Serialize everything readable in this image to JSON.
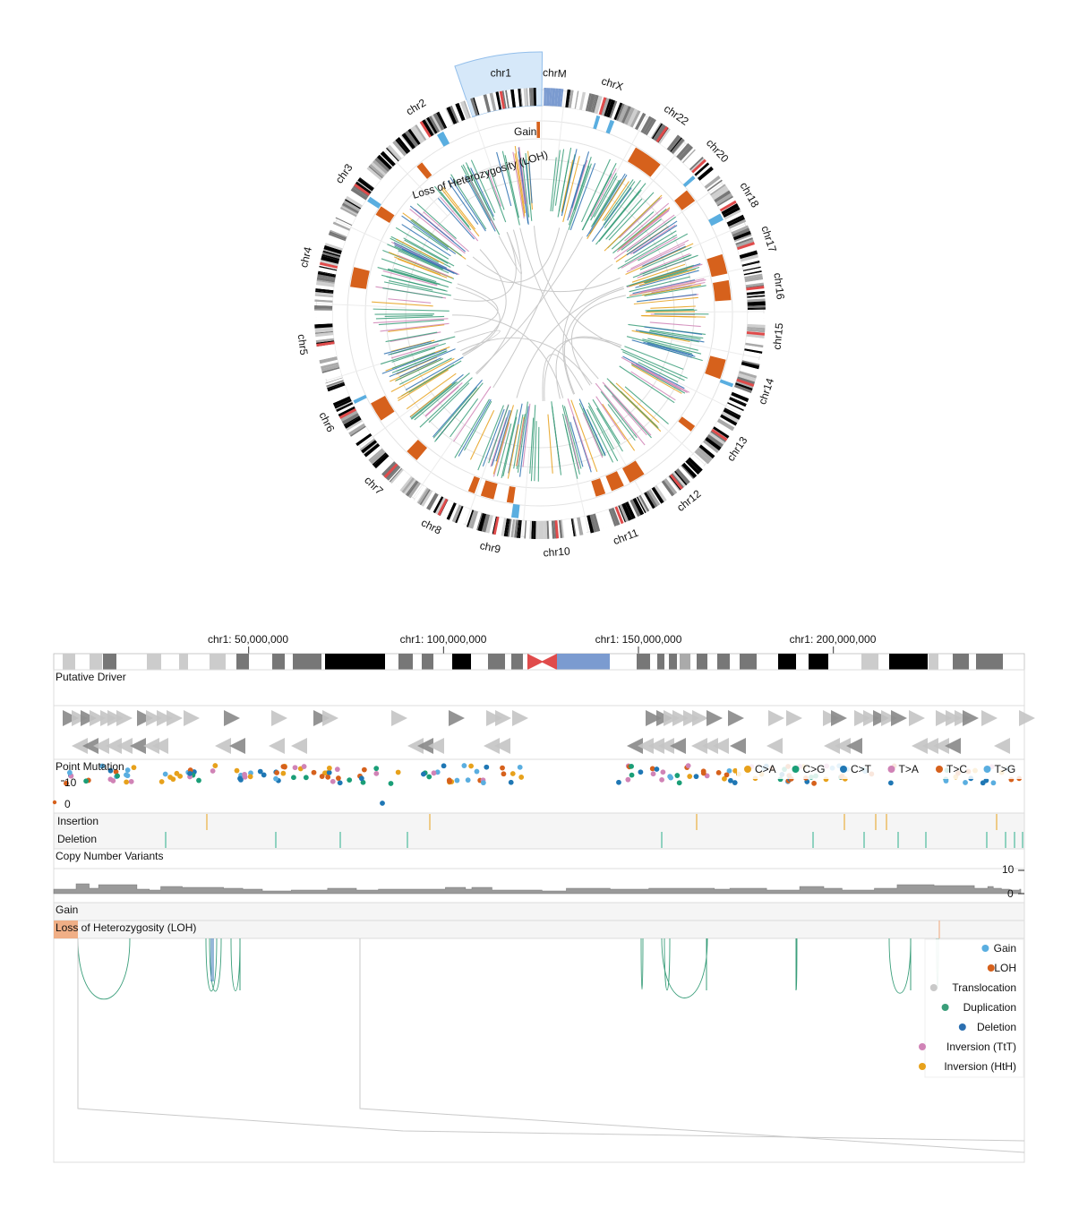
{
  "colors": {
    "gain": "#5aaee0",
    "loh": "#d6611c",
    "translocation": "#c9c9c9",
    "duplication": "#3a9e7a",
    "deletion": "#2b6fb0",
    "inversion_tt": "#d083b6",
    "inversion_hth": "#e7a11b",
    "selection": "#cfe4f8",
    "acen": "#e04b4b",
    "gvar": "#7b9bd0"
  },
  "circos": {
    "chromosomes": [
      "chr1",
      "chr2",
      "chr3",
      "chr4",
      "chr5",
      "chr6",
      "chr7",
      "chr8",
      "chr9",
      "chr10",
      "chr11",
      "chr12",
      "chr13",
      "chr14",
      "chr15",
      "chr16",
      "chr17",
      "chr18",
      "chr20",
      "chr22",
      "chrX",
      "chrM"
    ],
    "selected": "chr1",
    "gain_track_label": "Gain",
    "loh_track_label": "Loss of Heterozygosity (LOH)"
  },
  "linear": {
    "axis_ticks": [
      "chr1: 50,000,000",
      "chr1: 100,000,000",
      "chr1: 150,000,000",
      "chr1: 200,000,000"
    ],
    "axis_tick_values": [
      50000000,
      100000000,
      150000000,
      200000000
    ],
    "chrom_length": 249000000,
    "tracks": {
      "putative_driver": "Putative Driver",
      "point_mutation": "Point Mutation",
      "insertion": "Insertion",
      "deletion": "Deletion",
      "cnv": "Copy Number Variants",
      "gain": "Gain",
      "loh": "Loss of Heterozygosity (LOH)"
    },
    "point_mutation_ticks": [
      "10",
      "0"
    ],
    "cnv_ticks": [
      "10",
      "0"
    ],
    "mutation_legend": [
      {
        "label": "C>A",
        "color": "#e7a11b"
      },
      {
        "label": "C>G",
        "color": "#1a9e77"
      },
      {
        "label": "C>T",
        "color": "#1f77b4"
      },
      {
        "label": "T>A",
        "color": "#d083b6"
      },
      {
        "label": "T>C",
        "color": "#d6611c"
      },
      {
        "label": "T>G",
        "color": "#5aaee0"
      }
    ],
    "sv_legend": [
      {
        "label": "Gain",
        "color": "#5aaee0"
      },
      {
        "label": "LOH",
        "color": "#d6611c"
      },
      {
        "label": "Translocation",
        "color": "#c9c9c9"
      },
      {
        "label": "Duplication",
        "color": "#3a9e7a"
      },
      {
        "label": "Deletion",
        "color": "#2b6fb0"
      },
      {
        "label": "Inversion (TtT)",
        "color": "#d083b6"
      },
      {
        "label": "Inversion (HtH)",
        "color": "#e7a11b"
      }
    ]
  }
}
